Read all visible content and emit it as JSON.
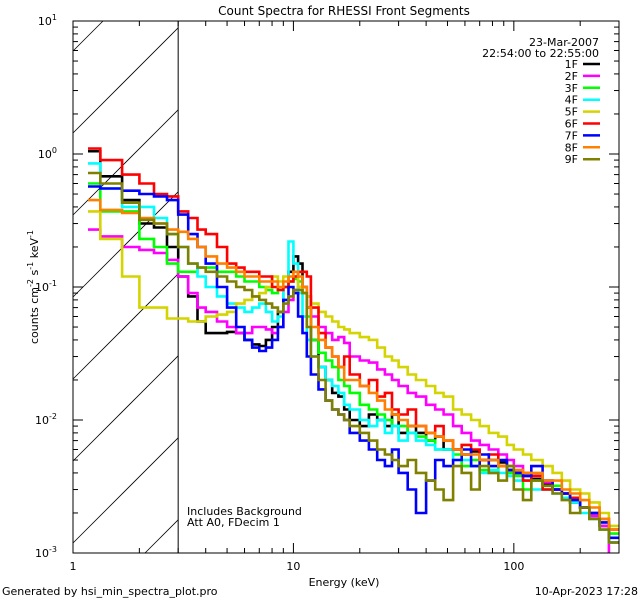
{
  "chart_data": {
    "type": "line",
    "title": "Count Spectra for RHESSI Front Segments",
    "xlabel": "Energy (keV)",
    "ylabel": "counts cm-2 s-1 keV-1",
    "xscale": "log",
    "yscale": "log",
    "xlim": [
      1,
      300
    ],
    "ylim": [
      0.001,
      10
    ],
    "x_tick_labels": [
      "1",
      "10",
      "100"
    ],
    "y_tick_labels": [
      {
        "base": "10",
        "exp": "1"
      },
      {
        "base": "10",
        "exp": "0"
      },
      {
        "base": "10",
        "exp": "-1"
      },
      {
        "base": "10",
        "exp": "-2"
      },
      {
        "base": "10",
        "exp": "-3"
      }
    ],
    "shaded_region_keV": [
      1,
      3
    ],
    "date": "23-Mar-2007",
    "time_range": "22:54:00 to 22:55:00",
    "annotations": [
      "Includes Background",
      "Att A0, FDecim 1"
    ],
    "legend_position": "top-right",
    "energy_edges": [
      1.17,
      1.33,
      1.67,
      2.0,
      2.33,
      2.67,
      3.0,
      3.33,
      3.67,
      4.0,
      4.5,
      5.0,
      5.5,
      6.0,
      6.5,
      7.0,
      7.5,
      8.0,
      8.5,
      9.0,
      9.5,
      10.0,
      10.5,
      11.0,
      11.5,
      12.0,
      13,
      14,
      15,
      16,
      17,
      18,
      20,
      22,
      24,
      26,
      28,
      30,
      33,
      36,
      40,
      44,
      48,
      53,
      58,
      64,
      70,
      77,
      85,
      93,
      100,
      110,
      120,
      135,
      150,
      165,
      180,
      200,
      220,
      245,
      270,
      300
    ],
    "series": [
      {
        "name": "1F",
        "color": "#000000",
        "values": [
          1.05,
          0.68,
          0.45,
          0.3,
          0.28,
          0.2,
          0.12,
          0.085,
          0.055,
          0.045,
          0.045,
          0.046,
          0.045,
          0.04,
          0.037,
          0.036,
          0.04,
          0.05,
          0.065,
          0.1,
          0.13,
          0.17,
          0.15,
          0.1,
          0.07,
          0.04,
          0.025,
          0.02,
          0.016,
          0.015,
          0.012,
          0.01,
          0.009,
          0.011,
          0.01,
          0.009,
          0.011,
          0.008,
          0.009,
          0.008,
          0.007,
          0.0075,
          0.006,
          0.006,
          0.0055,
          0.0058,
          0.005,
          0.005,
          0.0048,
          0.0042,
          0.004,
          0.0038,
          0.0036,
          0.0033,
          0.003,
          0.0028,
          0.0024,
          0.0022,
          0.0019,
          0.0016,
          0.0012
        ]
      },
      {
        "name": "2F",
        "color": "#ff00ff",
        "values": [
          0.27,
          0.24,
          0.2,
          0.19,
          0.18,
          0.16,
          0.12,
          0.09,
          0.07,
          0.065,
          0.055,
          0.05,
          0.045,
          0.045,
          0.05,
          0.05,
          0.048,
          0.045,
          0.05,
          0.065,
          0.08,
          0.095,
          0.1,
          0.09,
          0.085,
          0.06,
          0.05,
          0.045,
          0.04,
          0.042,
          0.038,
          0.03,
          0.028,
          0.027,
          0.024,
          0.022,
          0.02,
          0.018,
          0.016,
          0.015,
          0.013,
          0.012,
          0.011,
          0.009,
          0.008,
          0.007,
          0.0065,
          0.006,
          0.0055,
          0.005,
          0.0045,
          0.004,
          0.0038,
          0.0034,
          0.003,
          0.0028,
          0.0025,
          0.0022,
          0.0019,
          0.0016,
          0.0008
        ]
      },
      {
        "name": "3F",
        "color": "#00ff00",
        "values": [
          0.6,
          0.37,
          0.37,
          0.23,
          0.2,
          0.15,
          0.13,
          0.13,
          0.14,
          0.14,
          0.13,
          0.13,
          0.12,
          0.11,
          0.11,
          0.1,
          0.095,
          0.09,
          0.095,
          0.1,
          0.11,
          0.115,
          0.11,
          0.09,
          0.06,
          0.04,
          0.032,
          0.028,
          0.025,
          0.02,
          0.018,
          0.016,
          0.013,
          0.012,
          0.011,
          0.01,
          0.009,
          0.009,
          0.008,
          0.0075,
          0.007,
          0.006,
          0.006,
          0.0055,
          0.0045,
          0.005,
          0.0042,
          0.004,
          0.0045,
          0.004,
          0.0038,
          0.003,
          0.0035,
          0.003,
          0.0032,
          0.0028,
          0.0025,
          0.0022,
          0.002,
          0.0017,
          0.0014
        ]
      },
      {
        "name": "4F",
        "color": "#00ffff",
        "values": [
          0.85,
          0.55,
          0.4,
          0.4,
          0.33,
          0.25,
          0.2,
          0.15,
          0.12,
          0.1,
          0.085,
          0.075,
          0.07,
          0.065,
          0.07,
          0.075,
          0.065,
          0.055,
          0.06,
          0.1,
          0.22,
          0.15,
          0.09,
          0.06,
          0.04,
          0.03,
          0.025,
          0.02,
          0.018,
          0.016,
          0.013,
          0.012,
          0.01,
          0.009,
          0.01,
          0.008,
          0.009,
          0.007,
          0.008,
          0.007,
          0.0065,
          0.006,
          0.006,
          0.005,
          0.005,
          0.0045,
          0.004,
          0.0042,
          0.004,
          0.0038,
          0.0035,
          0.0035,
          0.003,
          0.003,
          0.0028,
          0.0026,
          0.0024,
          0.002,
          0.0018,
          0.0015,
          0.0012
        ]
      },
      {
        "name": "5F",
        "color": "#d4d400",
        "values": [
          0.37,
          0.23,
          0.12,
          0.07,
          0.07,
          0.058,
          0.058,
          0.055,
          0.055,
          0.06,
          0.062,
          0.065,
          0.075,
          0.08,
          0.085,
          0.09,
          0.1,
          0.12,
          0.11,
          0.12,
          0.11,
          0.12,
          0.1,
          0.09,
          0.085,
          0.075,
          0.065,
          0.06,
          0.055,
          0.05,
          0.048,
          0.045,
          0.042,
          0.04,
          0.035,
          0.03,
          0.028,
          0.025,
          0.022,
          0.02,
          0.018,
          0.016,
          0.015,
          0.012,
          0.011,
          0.01,
          0.009,
          0.008,
          0.0075,
          0.0065,
          0.006,
          0.0055,
          0.005,
          0.0045,
          0.004,
          0.0035,
          0.003,
          0.0028,
          0.0024,
          0.002,
          0.0016
        ]
      },
      {
        "name": "6F",
        "color": "#ff0000",
        "values": [
          1.1,
          0.9,
          0.7,
          0.6,
          0.5,
          0.48,
          0.37,
          0.33,
          0.27,
          0.25,
          0.2,
          0.15,
          0.14,
          0.13,
          0.13,
          0.12,
          0.12,
          0.1,
          0.095,
          0.1,
          0.11,
          0.12,
          0.13,
          0.13,
          0.12,
          0.07,
          0.045,
          0.035,
          0.03,
          0.025,
          0.03,
          0.022,
          0.018,
          0.02,
          0.015,
          0.016,
          0.012,
          0.011,
          0.012,
          0.009,
          0.008,
          0.009,
          0.007,
          0.006,
          0.0065,
          0.006,
          0.005,
          0.0055,
          0.0045,
          0.0042,
          0.004,
          0.0035,
          0.0038,
          0.003,
          0.003,
          0.0028,
          0.0026,
          0.0022,
          0.002,
          0.0018,
          0.0015
        ]
      },
      {
        "name": "7F",
        "color": "#0000ff",
        "values": [
          0.57,
          0.55,
          0.53,
          0.5,
          0.48,
          0.45,
          0.35,
          0.25,
          0.2,
          0.15,
          0.1,
          0.07,
          0.05,
          0.04,
          0.035,
          0.033,
          0.035,
          0.04,
          0.05,
          0.08,
          0.1,
          0.09,
          0.06,
          0.045,
          0.03,
          0.022,
          0.017,
          0.014,
          0.012,
          0.011,
          0.01,
          0.008,
          0.007,
          0.006,
          0.005,
          0.0045,
          0.006,
          0.004,
          0.003,
          0.002,
          0.0035,
          0.005,
          0.0045,
          0.005,
          0.006,
          0.0045,
          0.0055,
          0.0045,
          0.005,
          0.0042,
          0.004,
          0.0038,
          0.0045,
          0.0035,
          0.003,
          0.0028,
          0.0025,
          0.0022,
          0.002,
          0.0017,
          0.0013
        ]
      },
      {
        "name": "8F",
        "color": "#ff8000",
        "values": [
          0.45,
          0.38,
          0.36,
          0.33,
          0.3,
          0.27,
          0.26,
          0.23,
          0.2,
          0.17,
          0.15,
          0.14,
          0.13,
          0.12,
          0.12,
          0.11,
          0.11,
          0.11,
          0.1,
          0.11,
          0.12,
          0.13,
          0.12,
          0.1,
          0.07,
          0.05,
          0.04,
          0.035,
          0.03,
          0.025,
          0.02,
          0.02,
          0.018,
          0.016,
          0.014,
          0.012,
          0.011,
          0.01,
          0.009,
          0.009,
          0.008,
          0.0075,
          0.007,
          0.006,
          0.0055,
          0.0055,
          0.005,
          0.005,
          0.0045,
          0.0045,
          0.0042,
          0.004,
          0.004,
          0.0035,
          0.0035,
          0.003,
          0.0028,
          0.0025,
          0.0022,
          0.0018,
          0.0015
        ]
      },
      {
        "name": "9F",
        "color": "#808000",
        "values": [
          0.72,
          0.6,
          0.43,
          0.32,
          0.3,
          0.25,
          0.2,
          0.15,
          0.14,
          0.13,
          0.12,
          0.11,
          0.1,
          0.095,
          0.085,
          0.08,
          0.075,
          0.07,
          0.065,
          0.075,
          0.085,
          0.095,
          0.095,
          0.09,
          0.05,
          0.03,
          0.02,
          0.014,
          0.012,
          0.011,
          0.01,
          0.009,
          0.008,
          0.007,
          0.006,
          0.0055,
          0.005,
          0.0045,
          0.005,
          0.004,
          0.0035,
          0.003,
          0.0025,
          0.0045,
          0.004,
          0.003,
          0.0045,
          0.004,
          0.0035,
          0.0045,
          0.003,
          0.0025,
          0.0035,
          0.0032,
          0.0028,
          0.0025,
          0.002,
          0.0022,
          0.0018,
          0.0015,
          0.0012
        ]
      }
    ]
  },
  "ylabel_parts": {
    "a": "counts cm",
    "b": "-2",
    "c": " s",
    "d": "-1",
    "e": " keV",
    "f": "-1"
  },
  "footer": {
    "left": "Generated by hsi_min_spectra_plot.pro",
    "right": "10-Apr-2023 17:28"
  }
}
